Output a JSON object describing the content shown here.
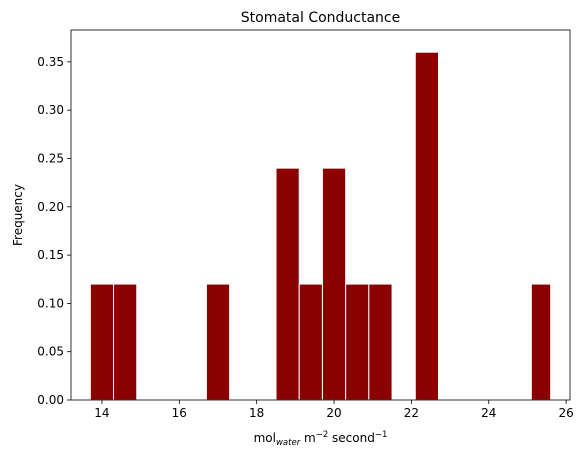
{
  "chart_data": {
    "type": "bar",
    "title": "Stomatal Conductance",
    "xlabel": {
      "base": "mol",
      "sub": "water",
      "rest1": " m",
      "sup1": "−2",
      "rest2": " second",
      "sup2": "−1"
    },
    "ylabel": "Frequency",
    "xlim": [
      13.2,
      26.1
    ],
    "ylim": [
      0,
      0.383
    ],
    "xticks": [
      14,
      16,
      18,
      20,
      22,
      24,
      26
    ],
    "xtick_labels": [
      "14",
      "16",
      "18",
      "20",
      "22",
      "24",
      "26"
    ],
    "yticks": [
      0,
      0.05,
      0.1,
      0.15,
      0.2,
      0.25,
      0.3,
      0.35
    ],
    "ytick_labels": [
      "0.00",
      "0.05",
      "0.10",
      "0.15",
      "0.20",
      "0.25",
      "0.30",
      "0.35"
    ],
    "bin_width": 0.6,
    "bins": [
      {
        "left": 13.7,
        "right": 14.3,
        "value": 0.12
      },
      {
        "left": 14.3,
        "right": 14.9,
        "value": 0.12
      },
      {
        "left": 16.7,
        "right": 17.3,
        "value": 0.12
      },
      {
        "left": 18.5,
        "right": 19.1,
        "value": 0.24
      },
      {
        "left": 19.1,
        "right": 19.7,
        "value": 0.12
      },
      {
        "left": 19.7,
        "right": 20.3,
        "value": 0.24
      },
      {
        "left": 20.3,
        "right": 20.9,
        "value": 0.12
      },
      {
        "left": 20.9,
        "right": 21.5,
        "value": 0.12
      },
      {
        "left": 22.1,
        "right": 22.7,
        "value": 0.36
      },
      {
        "left": 25.1,
        "right": 25.6,
        "value": 0.12
      }
    ],
    "bar_color": "#8b0000",
    "edge_color": "#ffffff",
    "grid": false,
    "legend": "none"
  }
}
